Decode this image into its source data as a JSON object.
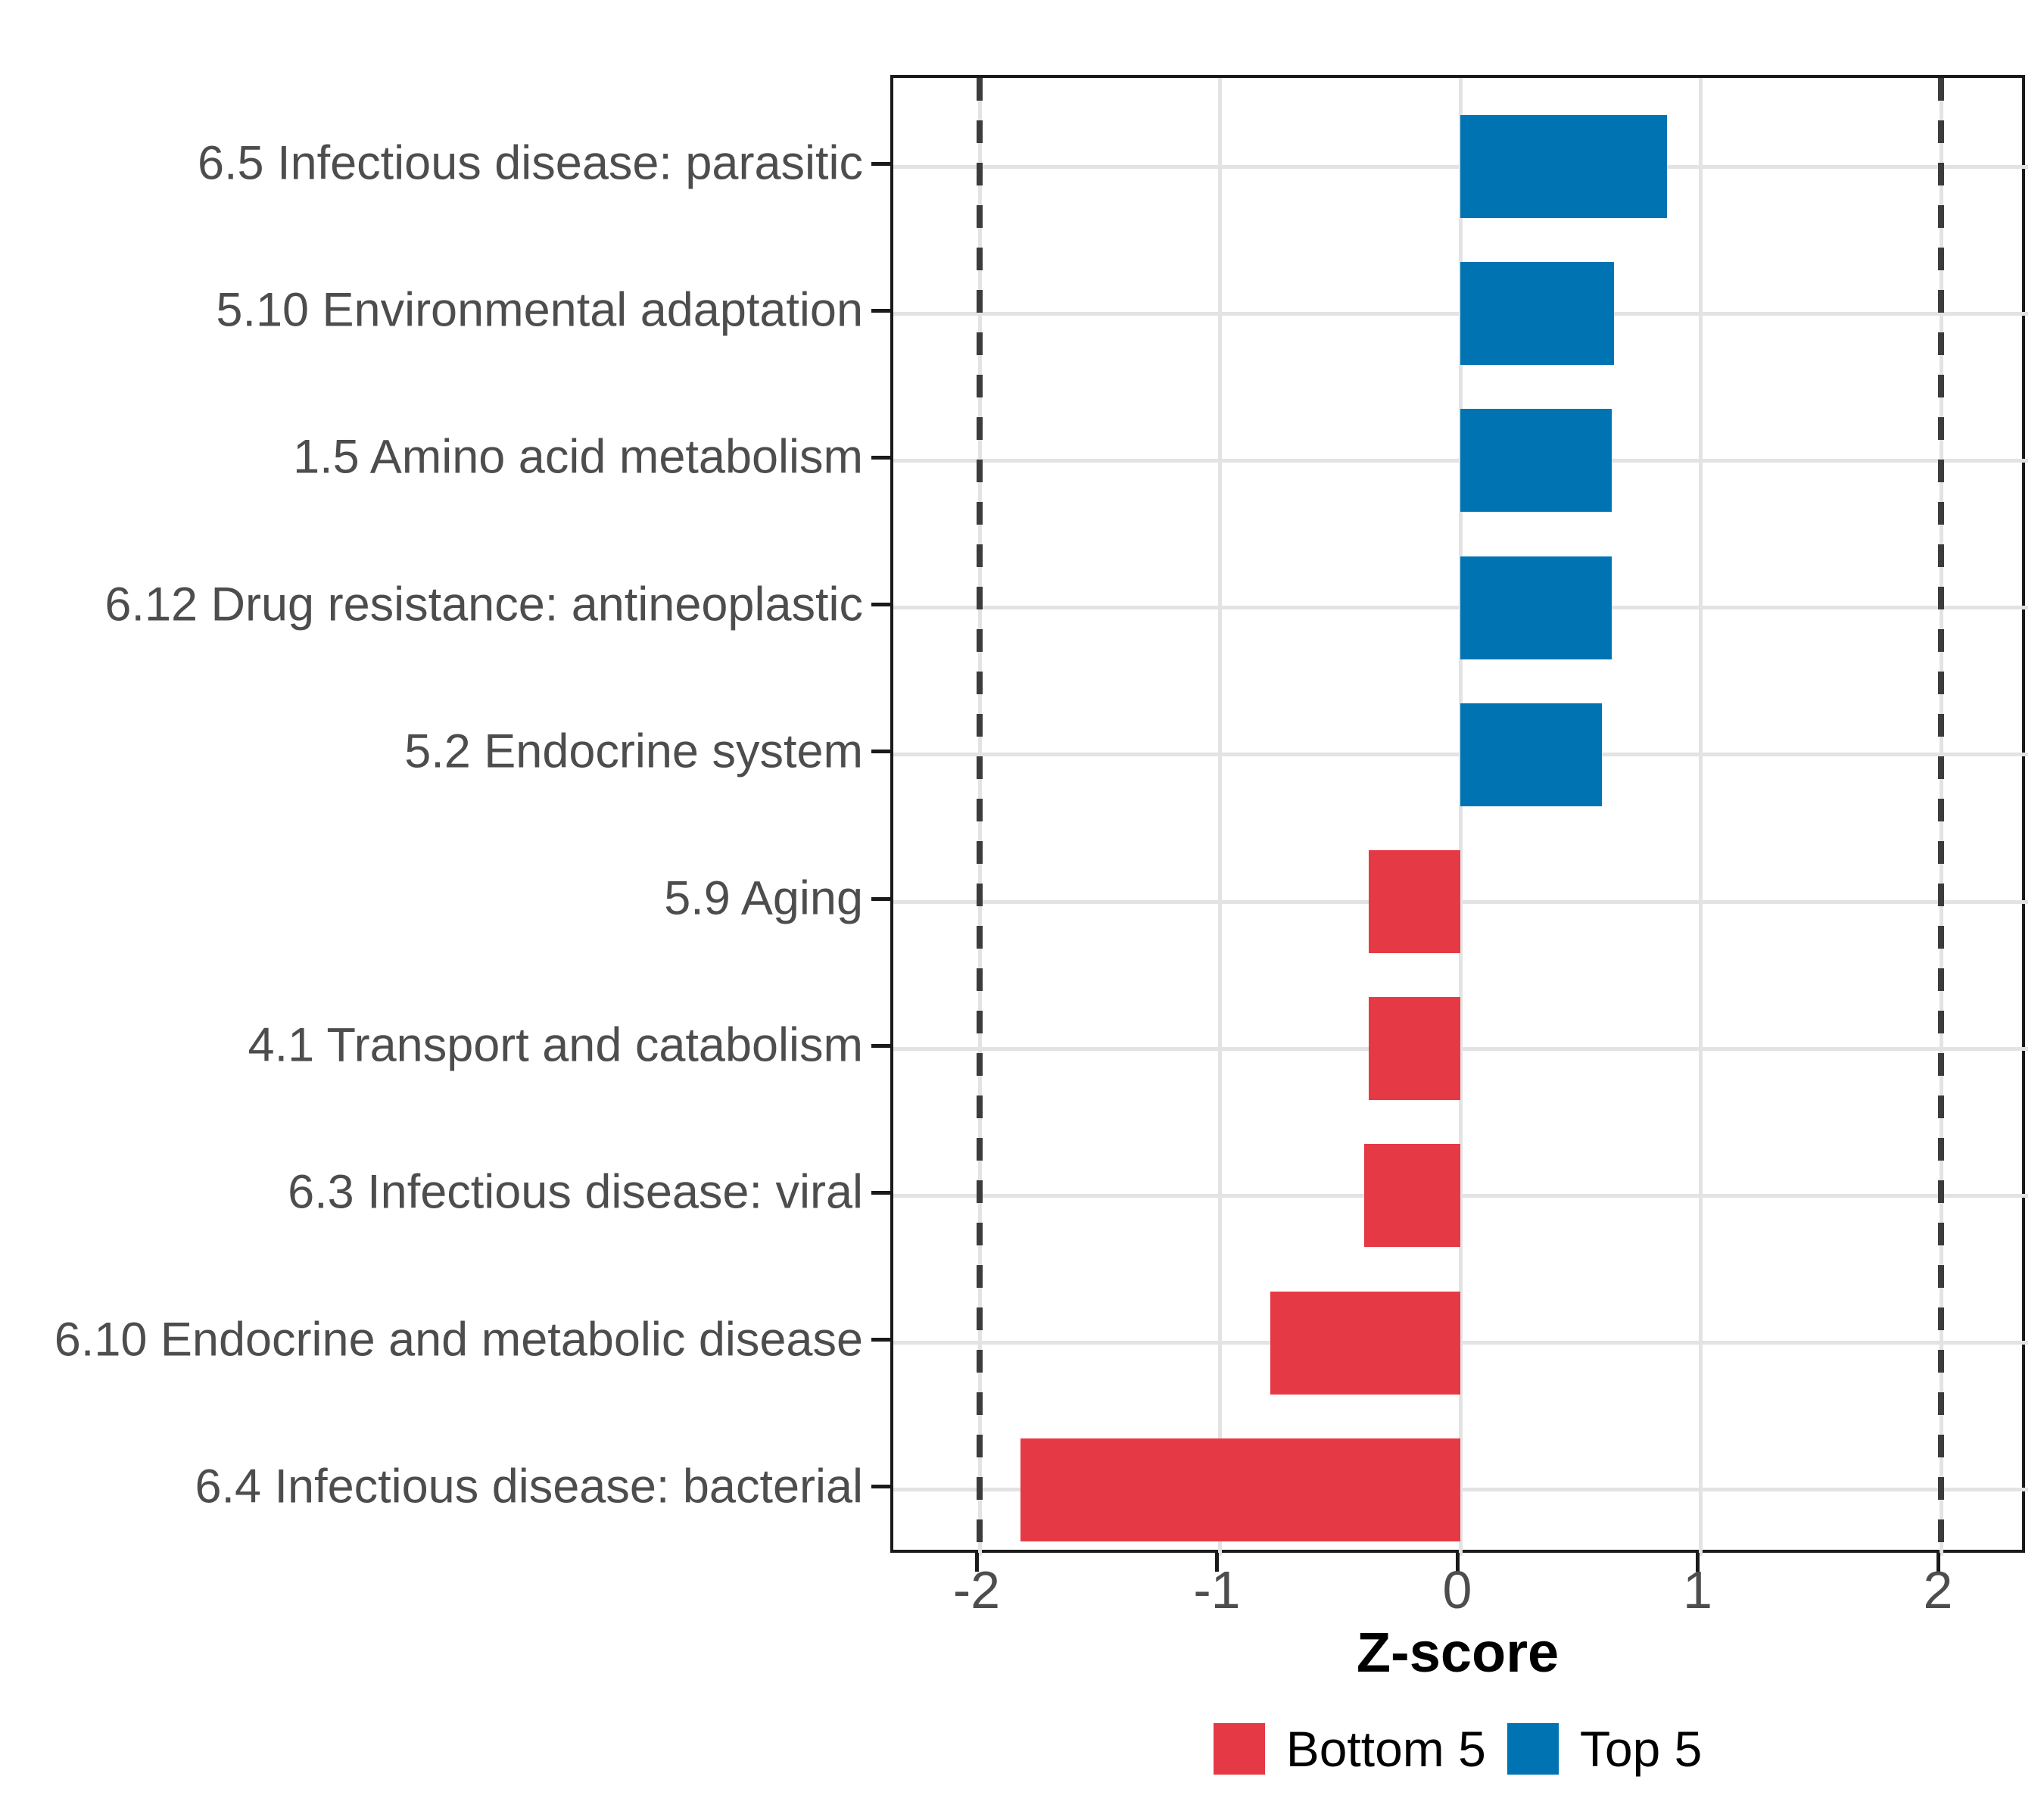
{
  "chart_data": {
    "type": "bar",
    "orientation": "horizontal",
    "title": "",
    "xlabel": "Z-score",
    "ylabel": "",
    "categories": [
      "6.5 Infectious disease: parasitic",
      "5.10 Environmental adaptation",
      "1.5 Amino acid metabolism",
      "6.12 Drug resistance: antineoplastic",
      "5.2 Endocrine system",
      "5.9 Aging",
      "4.1 Transport and catabolism",
      "6.3 Infectious disease: viral",
      "6.10 Endocrine and metabolic disease",
      "6.4 Infectious disease: bacterial"
    ],
    "values": [
      0.86,
      0.64,
      0.63,
      0.63,
      0.59,
      -0.38,
      -0.38,
      -0.4,
      -0.79,
      -1.83
    ],
    "bar_groups": [
      "Top 5",
      "Top 5",
      "Top 5",
      "Top 5",
      "Top 5",
      "Bottom 5",
      "Bottom 5",
      "Bottom 5",
      "Bottom 5",
      "Bottom 5"
    ],
    "x_ticks": [
      {
        "value": -2,
        "label": "-2"
      },
      {
        "value": -1,
        "label": "-1"
      },
      {
        "value": 0,
        "label": "0"
      },
      {
        "value": 1,
        "label": "1"
      },
      {
        "value": 2,
        "label": "2"
      }
    ],
    "xlim": [
      -2.36,
      2.36
    ],
    "reference_lines": {
      "values": [
        -2,
        2
      ],
      "style": "dashed",
      "color": "#3c3c3c"
    },
    "grid": true,
    "legend_position": "bottom",
    "legend": [
      {
        "label": "Bottom 5",
        "color": "#E63946"
      },
      {
        "label": "Top 5",
        "color": "#0074B3"
      }
    ]
  }
}
